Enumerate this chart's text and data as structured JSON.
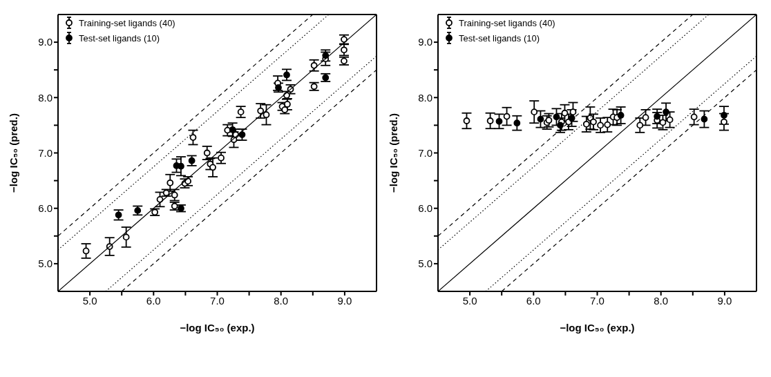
{
  "chart_data": [
    {
      "type": "scatter",
      "xlabel": "−log IC₅₀ (exp.)",
      "ylabel": "−log IC₅₀ (pred.)",
      "xlim": [
        4.5,
        9.5
      ],
      "ylim": [
        4.5,
        9.5
      ],
      "xticks": [
        {
          "value": 5,
          "label": "5.0"
        },
        {
          "value": 5.5,
          "label": null
        },
        {
          "value": 6,
          "label": "6.0"
        },
        {
          "value": 6.5,
          "label": null
        },
        {
          "value": 7,
          "label": "7.0"
        },
        {
          "value": 7.5,
          "label": null
        },
        {
          "value": 8,
          "label": "8.0"
        },
        {
          "value": 8.5,
          "label": null
        },
        {
          "value": 9,
          "label": "9.0"
        }
      ],
      "yticks": [
        {
          "value": 5,
          "label": "5.0"
        },
        {
          "value": 5.5,
          "label": null
        },
        {
          "value": 6,
          "label": "6.0"
        },
        {
          "value": 6.5,
          "label": null
        },
        {
          "value": 7,
          "label": "7.0"
        },
        {
          "value": 7.5,
          "label": null
        },
        {
          "value": 8,
          "label": "8.0"
        },
        {
          "value": 8.5,
          "label": null
        },
        {
          "value": 9,
          "label": "9.0"
        }
      ],
      "legend": "top left",
      "marker": "circle",
      "grid": false,
      "series": [
        {
          "name": "Training-set ligands (40)",
          "color": "#ffffff",
          "x": [
            4.94,
            5.31,
            5.57,
            6.02,
            6.1,
            6.2,
            6.26,
            6.33,
            6.33,
            6.49,
            6.54,
            6.62,
            6.84,
            6.89,
            6.93,
            7.06,
            7.16,
            7.26,
            7.29,
            7.37,
            7.68,
            7.77,
            7.95,
            8.02,
            8.06,
            8.09,
            8.1,
            8.15,
            8.52,
            8.52,
            8.7,
            8.99,
            8.99,
            8.99
          ],
          "values": [
            5.23,
            5.31,
            5.48,
            5.93,
            6.16,
            6.28,
            6.46,
            6.24,
            6.04,
            6.45,
            6.49,
            7.28,
            7.0,
            6.8,
            6.74,
            6.91,
            7.41,
            7.24,
            7.33,
            7.74,
            7.76,
            7.69,
            8.26,
            7.84,
            7.78,
            8.04,
            7.88,
            8.15,
            8.58,
            8.2,
            8.7,
            9.05,
            8.86,
            8.66
          ],
          "errors": [
            0.13,
            0.16,
            0.18,
            0.06,
            0.13,
            0.06,
            0.15,
            0.1,
            0.07,
            0.08,
            0.08,
            0.13,
            0.12,
            0.1,
            0.17,
            0.1,
            0.1,
            0.14,
            0.1,
            0.1,
            0.13,
            0.18,
            0.13,
            0.07,
            0.07,
            0.07,
            0.1,
            0.08,
            0.1,
            0.07,
            0.12,
            0.08,
            0.1,
            0.07
          ]
        },
        {
          "name": "Test-set ligands (10)",
          "color": "#000000",
          "x": [
            5.45,
            5.75,
            6.36,
            6.43,
            6.43,
            6.6,
            7.24,
            7.39,
            7.96,
            8.09,
            8.7,
            8.7
          ],
          "values": [
            5.88,
            5.96,
            6.77,
            6.76,
            6.0,
            6.86,
            7.42,
            7.33,
            8.18,
            8.41,
            8.36,
            8.76
          ],
          "errors": [
            0.09,
            0.08,
            0.12,
            0.17,
            0.06,
            0.09,
            0.12,
            0.1,
            0.08,
            0.1,
            0.07,
            0.1
          ]
        },
        {
          "type": "line",
          "color": "#000000",
          "line_style": "solid",
          "marker": "none",
          "x": [
            4.5,
            9.5
          ],
          "values": [
            4.5,
            9.5
          ]
        },
        {
          "type": "line",
          "color": "#000000",
          "line_style": "dotted",
          "marker": "none",
          "x": [
            4.5,
            8.75
          ],
          "values": [
            5.25,
            9.5
          ]
        },
        {
          "type": "line",
          "color": "#000000",
          "line_style": "dotted",
          "marker": "none",
          "x": [
            5.25,
            9.5
          ],
          "values": [
            4.5,
            8.75
          ]
        },
        {
          "type": "line",
          "color": "#000000",
          "line_style": "dashed",
          "marker": "none",
          "x": [
            4.5,
            8.5
          ],
          "values": [
            5.5,
            9.5
          ]
        },
        {
          "type": "line",
          "color": "#000000",
          "line_style": "dashed",
          "marker": "none",
          "x": [
            5.5,
            9.5
          ],
          "values": [
            4.5,
            8.5
          ]
        }
      ]
    },
    {
      "type": "scatter",
      "xlabel": "−log IC₅₀ (exp.)",
      "ylabel": "−log IC₅₀ (pred.)",
      "xlim": [
        4.5,
        9.5
      ],
      "ylim": [
        4.5,
        9.5
      ],
      "xticks": [
        {
          "value": 5,
          "label": "5.0"
        },
        {
          "value": 5.5,
          "label": null
        },
        {
          "value": 6,
          "label": "6.0"
        },
        {
          "value": 6.5,
          "label": null
        },
        {
          "value": 7,
          "label": "7.0"
        },
        {
          "value": 7.5,
          "label": null
        },
        {
          "value": 8,
          "label": "8.0"
        },
        {
          "value": 8.5,
          "label": null
        },
        {
          "value": 9,
          "label": "9.0"
        }
      ],
      "yticks": [
        {
          "value": 5,
          "label": "5.0"
        },
        {
          "value": 5.5,
          "label": null
        },
        {
          "value": 6,
          "label": "6.0"
        },
        {
          "value": 6.5,
          "label": null
        },
        {
          "value": 7,
          "label": "7.0"
        },
        {
          "value": 7.5,
          "label": null
        },
        {
          "value": 8,
          "label": "8.0"
        },
        {
          "value": 8.5,
          "label": null
        },
        {
          "value": 9,
          "label": "9.0"
        }
      ],
      "legend": "top left",
      "marker": "circle",
      "grid": false,
      "series": [
        {
          "name": "Training-set ligands (40)",
          "color": "#ffffff",
          "x": [
            4.95,
            5.32,
            5.58,
            6.01,
            6.21,
            6.24,
            6.44,
            6.49,
            6.55,
            6.62,
            6.83,
            6.89,
            6.94,
            7.05,
            7.16,
            7.25,
            7.31,
            7.67,
            7.76,
            7.94,
            8.03,
            8.14,
            8.52,
            8.99
          ],
          "values": [
            7.58,
            7.58,
            7.66,
            7.74,
            7.55,
            7.59,
            7.56,
            7.72,
            7.56,
            7.74,
            7.52,
            7.63,
            7.56,
            7.5,
            7.51,
            7.65,
            7.64,
            7.5,
            7.64,
            7.59,
            7.55,
            7.6,
            7.65,
            7.56
          ],
          "errors": [
            0.14,
            0.14,
            0.16,
            0.2,
            0.12,
            0.12,
            0.15,
            0.15,
            0.14,
            0.17,
            0.14,
            0.2,
            0.14,
            0.13,
            0.13,
            0.14,
            0.14,
            0.13,
            0.14,
            0.14,
            0.13,
            0.14,
            0.14,
            0.15
          ]
        },
        {
          "name": "Test-set ligands (10)",
          "color": "#000000",
          "x": [
            5.46,
            5.74,
            6.11,
            6.36,
            6.42,
            6.6,
            7.37,
            7.94,
            8.08,
            8.68,
            8.99
          ],
          "values": [
            7.57,
            7.54,
            7.61,
            7.65,
            7.5,
            7.63,
            7.68,
            7.66,
            7.74,
            7.61,
            7.68
          ],
          "errors": [
            0.13,
            0.13,
            0.15,
            0.15,
            0.13,
            0.15,
            0.15,
            0.13,
            0.16,
            0.15,
            0.16
          ]
        },
        {
          "type": "line",
          "color": "#000000",
          "line_style": "solid",
          "marker": "none",
          "x": [
            4.5,
            9.5
          ],
          "values": [
            4.5,
            9.5
          ]
        },
        {
          "type": "line",
          "color": "#000000",
          "line_style": "dotted",
          "marker": "none",
          "x": [
            4.5,
            8.75
          ],
          "values": [
            5.25,
            9.5
          ]
        },
        {
          "type": "line",
          "color": "#000000",
          "line_style": "dotted",
          "marker": "none",
          "x": [
            5.25,
            9.5
          ],
          "values": [
            4.5,
            8.75
          ]
        },
        {
          "type": "line",
          "color": "#000000",
          "line_style": "dashed",
          "marker": "none",
          "x": [
            4.5,
            8.5
          ],
          "values": [
            5.5,
            9.5
          ]
        },
        {
          "type": "line",
          "color": "#000000",
          "line_style": "dashed",
          "marker": "none",
          "x": [
            5.5,
            9.5
          ],
          "values": [
            4.5,
            8.5
          ]
        }
      ]
    }
  ]
}
